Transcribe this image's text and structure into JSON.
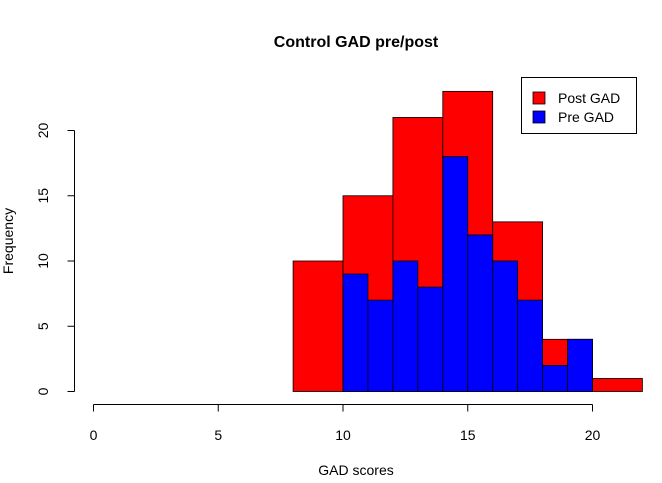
{
  "chart_data": {
    "type": "bar",
    "title": "Control GAD pre/post",
    "xlabel": "GAD scores",
    "ylabel": "Frequency",
    "xlim": [
      0,
      22
    ],
    "ylim": [
      0,
      23
    ],
    "x_ticks": [
      0,
      5,
      10,
      15,
      20
    ],
    "y_ticks": [
      0,
      5,
      10,
      15,
      20
    ],
    "legend_position": "top-right",
    "series": [
      {
        "name": "Post GAD",
        "color": "#ff0000",
        "bins": [
          {
            "x0": 8,
            "x1": 10,
            "count": 10
          },
          {
            "x0": 10,
            "x1": 12,
            "count": 15
          },
          {
            "x0": 12,
            "x1": 14,
            "count": 21
          },
          {
            "x0": 14,
            "x1": 16,
            "count": 23
          },
          {
            "x0": 16,
            "x1": 18,
            "count": 13
          },
          {
            "x0": 18,
            "x1": 20,
            "count": 4
          },
          {
            "x0": 20,
            "x1": 22,
            "count": 1
          }
        ]
      },
      {
        "name": "Pre GAD",
        "color": "#0000ff",
        "bins": [
          {
            "x0": 10,
            "x1": 11,
            "count": 9
          },
          {
            "x0": 11,
            "x1": 12,
            "count": 7
          },
          {
            "x0": 12,
            "x1": 13,
            "count": 10
          },
          {
            "x0": 13,
            "x1": 14,
            "count": 8
          },
          {
            "x0": 14,
            "x1": 15,
            "count": 18
          },
          {
            "x0": 15,
            "x1": 16,
            "count": 12
          },
          {
            "x0": 16,
            "x1": 17,
            "count": 10
          },
          {
            "x0": 17,
            "x1": 18,
            "count": 7
          },
          {
            "x0": 18,
            "x1": 19,
            "count": 2
          },
          {
            "x0": 19,
            "x1": 20,
            "count": 4
          }
        ]
      }
    ]
  }
}
